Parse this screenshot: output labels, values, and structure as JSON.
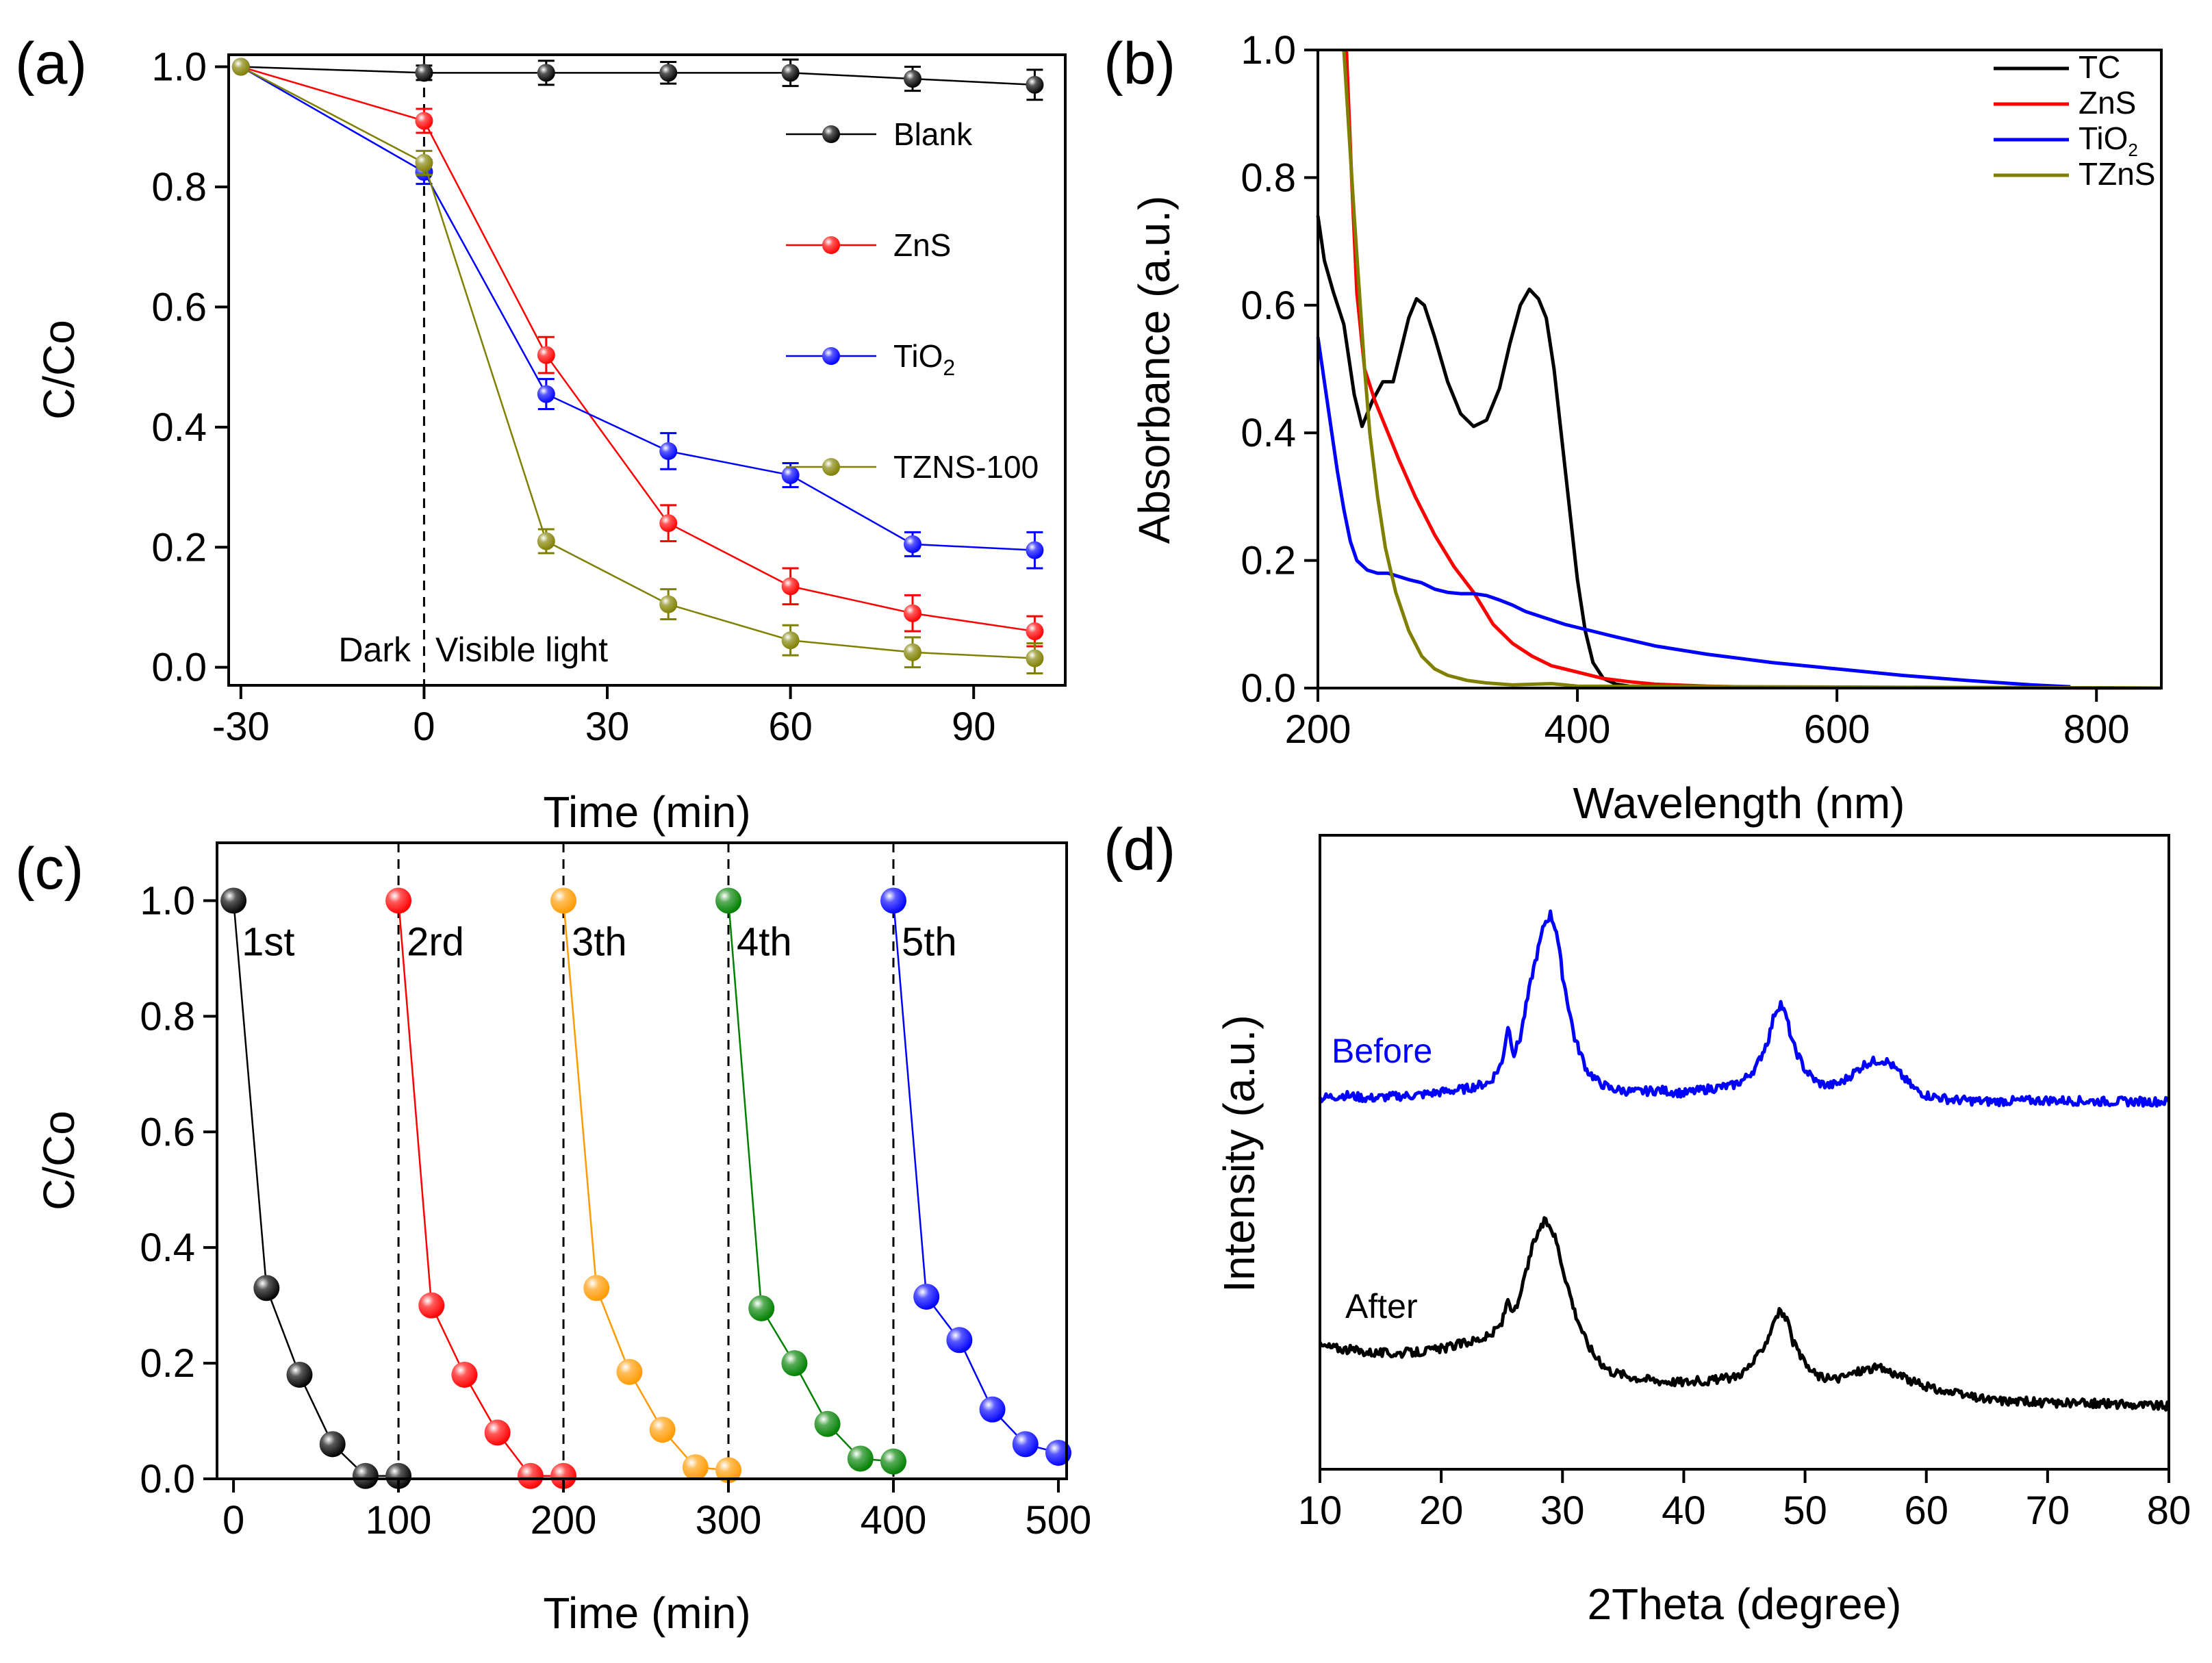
{
  "chart_data": [
    {
      "panel": "(a)",
      "type": "line",
      "xlabel": "Time (min)",
      "ylabel": "C/Co",
      "xlim": [
        -32,
        105
      ],
      "ylim": [
        -0.03,
        1.02
      ],
      "xticks": [
        -30,
        0,
        30,
        60,
        90
      ],
      "yticks": [
        0.0,
        0.2,
        0.4,
        0.6,
        0.8,
        1.0
      ],
      "tick_labels_x": [
        "-30",
        "0",
        "30",
        "60",
        "90"
      ],
      "tick_labels_y": [
        "0.0",
        "0.2",
        "0.4",
        "0.6",
        "0.8",
        "1.0"
      ],
      "legend_position": "top-right",
      "annotations": [
        "Dark",
        "Visible light"
      ],
      "marker_line_x": 0,
      "x": [
        -30,
        0,
        20,
        40,
        60,
        80,
        100
      ],
      "series": [
        {
          "name": "Blank",
          "color": "#000000",
          "values": [
            1.0,
            0.99,
            0.99,
            0.99,
            0.99,
            0.98,
            0.97
          ],
          "errors": [
            0,
            0.012,
            0.02,
            0.018,
            0.022,
            0.02,
            0.025
          ]
        },
        {
          "name": "ZnS",
          "color": "#ff0000",
          "values": [
            1.0,
            0.91,
            0.52,
            0.24,
            0.135,
            0.09,
            0.06
          ],
          "errors": [
            0,
            0.02,
            0.03,
            0.03,
            0.03,
            0.03,
            0.025
          ]
        },
        {
          "name": "TiO2",
          "name_main": "TiO",
          "name_sub": "2",
          "color": "#0000ff",
          "values": [
            1.0,
            0.825,
            0.455,
            0.36,
            0.32,
            0.205,
            0.195
          ],
          "errors": [
            0,
            0.02,
            0.025,
            0.03,
            0.02,
            0.02,
            0.03
          ]
        },
        {
          "name": "TZNS-100",
          "color": "#808000",
          "values": [
            1.0,
            0.84,
            0.21,
            0.105,
            0.045,
            0.025,
            0.015
          ],
          "errors": [
            0,
            0.02,
            0.02,
            0.025,
            0.025,
            0.025,
            0.025
          ]
        }
      ]
    },
    {
      "panel": "(b)",
      "type": "line",
      "xlabel": "Wavelength (nm)",
      "ylabel": "Absorbance (a.u.)",
      "xlim": [
        200,
        850
      ],
      "ylim": [
        0,
        1.0
      ],
      "xticks": [
        200,
        400,
        600,
        800
      ],
      "yticks": [
        0.0,
        0.2,
        0.4,
        0.6,
        0.8,
        1.0
      ],
      "tick_labels_x": [
        "200",
        "400",
        "600",
        "800"
      ],
      "tick_labels_y": [
        "0.0",
        "0.2",
        "0.4",
        "0.6",
        "0.8",
        "1.0"
      ],
      "legend_position": "top-right",
      "series": [
        {
          "name": "TC",
          "color": "#000000",
          "x": [
            200,
            205,
            212,
            220,
            228,
            234,
            242,
            250,
            258,
            264,
            270,
            276,
            282,
            290,
            300,
            310,
            320,
            330,
            340,
            348,
            356,
            363,
            370,
            376,
            382,
            388,
            394,
            400,
            406,
            412,
            420,
            430,
            440,
            460,
            850
          ],
          "y": [
            0.74,
            0.67,
            0.62,
            0.57,
            0.46,
            0.41,
            0.45,
            0.48,
            0.48,
            0.53,
            0.58,
            0.61,
            0.6,
            0.55,
            0.48,
            0.43,
            0.41,
            0.42,
            0.47,
            0.54,
            0.6,
            0.625,
            0.61,
            0.58,
            0.5,
            0.39,
            0.28,
            0.17,
            0.09,
            0.04,
            0.015,
            0.006,
            0.003,
            0.002,
            0.0
          ]
        },
        {
          "name": "ZnS",
          "color": "#ff0000",
          "x": [
            222,
            226,
            230,
            236,
            244,
            252,
            262,
            275,
            290,
            305,
            320,
            335,
            350,
            365,
            380,
            400,
            420,
            440,
            460,
            500,
            550,
            850
          ],
          "y": [
            1.0,
            0.8,
            0.62,
            0.5,
            0.45,
            0.41,
            0.36,
            0.3,
            0.24,
            0.19,
            0.15,
            0.1,
            0.07,
            0.05,
            0.035,
            0.025,
            0.015,
            0.01,
            0.006,
            0.003,
            0.001,
            0.0
          ]
        },
        {
          "name": "TiO2",
          "name_main": "TiO",
          "name_sub": "2",
          "color": "#0000ff",
          "x": [
            200,
            205,
            210,
            215,
            220,
            225,
            230,
            238,
            246,
            254,
            262,
            270,
            280,
            290,
            300,
            310,
            320,
            330,
            340,
            350,
            360,
            375,
            390,
            410,
            430,
            460,
            500,
            550,
            600,
            650,
            700,
            750,
            780
          ],
          "y": [
            0.55,
            0.48,
            0.41,
            0.34,
            0.28,
            0.23,
            0.2,
            0.185,
            0.18,
            0.18,
            0.175,
            0.17,
            0.165,
            0.155,
            0.15,
            0.148,
            0.148,
            0.145,
            0.138,
            0.13,
            0.12,
            0.11,
            0.1,
            0.09,
            0.08,
            0.066,
            0.053,
            0.04,
            0.03,
            0.02,
            0.012,
            0.005,
            0.002
          ]
        },
        {
          "name": "TZnS",
          "color": "#808000",
          "x": [
            220,
            224,
            228,
            232,
            236,
            240,
            246,
            252,
            260,
            270,
            280,
            290,
            300,
            315,
            330,
            350,
            380,
            400,
            850
          ],
          "y": [
            1.0,
            0.87,
            0.74,
            0.62,
            0.5,
            0.4,
            0.3,
            0.22,
            0.15,
            0.09,
            0.05,
            0.03,
            0.02,
            0.012,
            0.008,
            0.005,
            0.007,
            0.003,
            0.0
          ]
        }
      ]
    },
    {
      "panel": "(c)",
      "type": "line",
      "xlabel": "Time (min)",
      "ylabel": "C/Co",
      "xlim": [
        -10,
        505
      ],
      "ylim": [
        0,
        1.1
      ],
      "xticks": [
        0,
        100,
        200,
        300,
        400,
        500
      ],
      "yticks": [
        0.0,
        0.2,
        0.4,
        0.6,
        0.8,
        1.0
      ],
      "tick_labels_x": [
        "0",
        "100",
        "200",
        "300",
        "400",
        "500"
      ],
      "tick_labels_y": [
        "0.0",
        "0.2",
        "0.4",
        "0.6",
        "0.8",
        "1.0"
      ],
      "marker_lines_x": [
        100,
        200,
        300,
        400
      ],
      "series": [
        {
          "name": "1st",
          "color": "#000000",
          "x": [
            0,
            20,
            40,
            60,
            80,
            100
          ],
          "values": [
            1.0,
            0.33,
            0.18,
            0.06,
            0.005,
            0.005
          ]
        },
        {
          "name": "2rd",
          "color": "#ff0000",
          "x": [
            100,
            120,
            140,
            160,
            180,
            200
          ],
          "values": [
            1.0,
            0.3,
            0.18,
            0.08,
            0.005,
            0.005
          ]
        },
        {
          "name": "3th",
          "color": "#ff9a00",
          "x": [
            200,
            220,
            240,
            260,
            280,
            300
          ],
          "values": [
            1.0,
            0.33,
            0.185,
            0.085,
            0.02,
            0.015
          ]
        },
        {
          "name": "4th",
          "color": "#008000",
          "x": [
            300,
            320,
            340,
            360,
            380,
            400
          ],
          "values": [
            1.0,
            0.295,
            0.2,
            0.095,
            0.035,
            0.03
          ]
        },
        {
          "name": "5th",
          "color": "#0000ff",
          "x": [
            400,
            420,
            440,
            460,
            480,
            500
          ],
          "values": [
            1.0,
            0.315,
            0.24,
            0.12,
            0.06,
            0.045
          ]
        }
      ]
    },
    {
      "panel": "(d)",
      "type": "line",
      "xlabel": "2Theta (degree)",
      "ylabel": "Intensity (a.u.)",
      "xlim": [
        10,
        80
      ],
      "ylim": [
        0,
        1
      ],
      "xticks": [
        10,
        20,
        30,
        40,
        50,
        60,
        70,
        80
      ],
      "tick_labels_x": [
        "10",
        "20",
        "30",
        "40",
        "50",
        "60",
        "70",
        "80"
      ],
      "series": [
        {
          "name": "Before",
          "color": "#0000ff",
          "x": [
            10,
            12,
            14,
            16,
            18,
            20,
            22,
            24,
            25,
            25.5,
            26,
            26.5,
            27,
            27.5,
            28,
            28.5,
            29,
            29.5,
            30,
            31,
            32,
            33,
            34,
            36,
            38,
            40,
            42,
            44,
            45,
            46,
            47,
            47.5,
            48,
            48.5,
            49,
            50,
            51,
            52,
            53,
            54,
            55,
            56,
            56.5,
            57,
            58,
            59,
            60,
            62,
            65,
            70,
            75,
            80
          ],
          "y": [
            0.585,
            0.59,
            0.585,
            0.588,
            0.59,
            0.595,
            0.6,
            0.61,
            0.64,
            0.7,
            0.655,
            0.68,
            0.73,
            0.78,
            0.82,
            0.86,
            0.875,
            0.85,
            0.78,
            0.68,
            0.63,
            0.61,
            0.6,
            0.595,
            0.598,
            0.593,
            0.6,
            0.605,
            0.615,
            0.635,
            0.68,
            0.72,
            0.735,
            0.71,
            0.67,
            0.63,
            0.61,
            0.605,
            0.61,
            0.625,
            0.64,
            0.645,
            0.645,
            0.64,
            0.62,
            0.6,
            0.59,
            0.583,
            0.58,
            0.582,
            0.58,
            0.58
          ]
        },
        {
          "name": "After",
          "color": "#000000",
          "x": [
            10,
            12,
            14,
            16,
            18,
            20,
            22,
            24,
            25,
            25.5,
            26,
            26.5,
            27,
            27.5,
            28,
            28.5,
            29,
            29.5,
            30,
            31,
            32,
            33,
            34,
            36,
            38,
            40,
            42,
            44,
            45,
            46,
            47,
            47.5,
            48,
            48.5,
            49,
            50,
            51,
            52,
            53,
            54,
            55,
            56,
            56.5,
            57,
            58,
            60,
            62,
            65,
            70,
            75,
            80
          ],
          "y": [
            0.195,
            0.19,
            0.185,
            0.183,
            0.185,
            0.19,
            0.2,
            0.21,
            0.23,
            0.27,
            0.245,
            0.27,
            0.31,
            0.35,
            0.375,
            0.39,
            0.385,
            0.36,
            0.32,
            0.25,
            0.2,
            0.17,
            0.155,
            0.145,
            0.14,
            0.138,
            0.14,
            0.145,
            0.155,
            0.175,
            0.21,
            0.24,
            0.25,
            0.235,
            0.2,
            0.165,
            0.148,
            0.142,
            0.145,
            0.152,
            0.158,
            0.16,
            0.158,
            0.155,
            0.145,
            0.13,
            0.12,
            0.11,
            0.105,
            0.103,
            0.1
          ]
        }
      ]
    }
  ]
}
